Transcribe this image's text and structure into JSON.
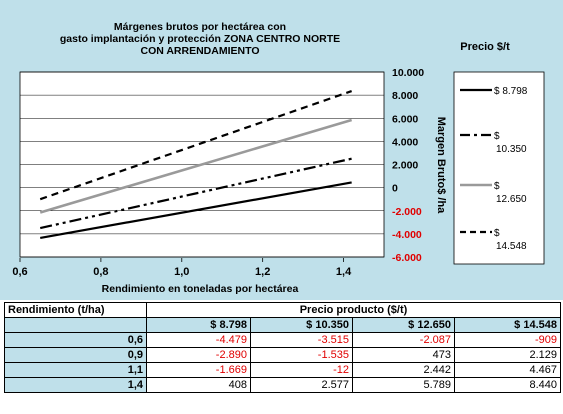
{
  "chart_data": {
    "type": "line",
    "title_lines": [
      "Márgenes brutos por hectárea con",
      "gasto implantación y protección ZONA CENTRO  NORTE",
      "CON ARRENDAMIENTO"
    ],
    "xlabel": "Rendimiento en toneladas por hectárea",
    "ylabel": "Margen Bruto$ /ha",
    "x_ticks": [
      "0,6",
      "0,8",
      "1,0",
      "1,2",
      "1,4"
    ],
    "y_ticks": [
      "10.000",
      "8.000",
      "6.000",
      "4.000",
      "2.000",
      "0",
      "-2.000",
      "-4.000",
      "-6.000"
    ],
    "xlim": [
      0.6,
      1.5
    ],
    "ylim": [
      -6000,
      10000
    ],
    "legend_title": "Precio $/t",
    "x": [
      0.65,
      1.42
    ],
    "series": [
      {
        "name": "$ 8.798",
        "values": [
          -4350,
          450
        ],
        "style": "solid"
      },
      {
        "name": "$ 10.350",
        "values": [
          -3500,
          2500
        ],
        "style": "dashdot"
      },
      {
        "name": "$ 12.650",
        "values": [
          -2150,
          5850
        ],
        "style": "gray"
      },
      {
        "name": "$ 14.548",
        "values": [
          -1000,
          8350
        ],
        "style": "dashed"
      }
    ]
  },
  "table": {
    "col1_header": "Rendimiento (t/ha)",
    "group_header": "Precio producto ($/t)",
    "prices": [
      "$ 8.798",
      "$ 10.350",
      "$ 12.650",
      "$ 14.548"
    ],
    "rows": [
      {
        "rend": "0,6",
        "vals": [
          "-4.479",
          "-3.515",
          "-2.087",
          "-909"
        ]
      },
      {
        "rend": "0,9",
        "vals": [
          "-2.890",
          "-1.535",
          "473",
          "2.129"
        ]
      },
      {
        "rend": "1,1",
        "vals": [
          "-1.669",
          "-12",
          "2.442",
          "4.467"
        ]
      },
      {
        "rend": "1,4",
        "vals": [
          "408",
          "2.577",
          "5.789",
          "8.440"
        ]
      }
    ]
  }
}
